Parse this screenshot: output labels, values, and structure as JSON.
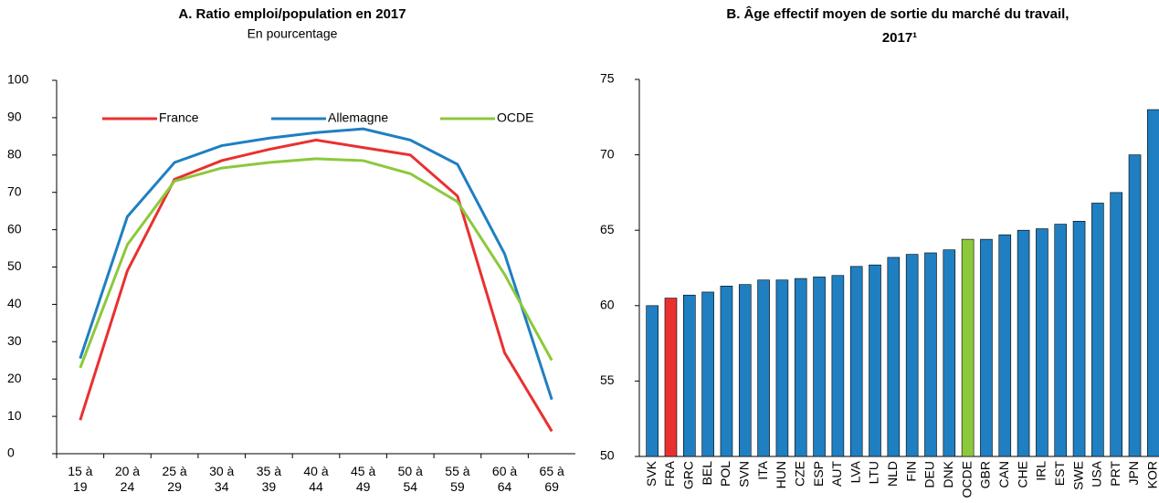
{
  "chart_data": [
    {
      "type": "line",
      "title": "A. Ratio emploi/population en 2017",
      "subtitle": "En pourcentage",
      "categories": [
        "15 à 19",
        "20 à 24",
        "25 à 29",
        "30 à 34",
        "35 à 39",
        "40 à 44",
        "45 à 49",
        "50 à 54",
        "55 à 59",
        "60 à 64",
        "65 à 69"
      ],
      "series": [
        {
          "name": "France",
          "color": "#e8312f",
          "values": [
            9,
            49,
            73.5,
            78.5,
            81.5,
            84,
            82,
            80,
            69,
            27,
            6
          ]
        },
        {
          "name": "Allemagne",
          "color": "#1f7fc1",
          "values": [
            25.5,
            63.5,
            78,
            82.5,
            84.5,
            86,
            87,
            84,
            77.5,
            53.5,
            14.5
          ]
        },
        {
          "name": "OCDE",
          "color": "#8cc83c",
          "values": [
            23,
            56,
            73,
            76.5,
            78,
            79,
            78.5,
            75,
            67.5,
            48,
            25
          ]
        }
      ],
      "ylim": [
        0,
        100
      ],
      "yticks": [
        0,
        10,
        20,
        30,
        40,
        50,
        60,
        70,
        80,
        90,
        100
      ],
      "legend": "top"
    },
    {
      "type": "bar",
      "title": "B. Âge effectif moyen de sortie du marché du travail, 2017¹",
      "categories": [
        "SVK",
        "FRA",
        "GRC",
        "BEL",
        "POL",
        "SVN",
        "ITA",
        "HUN",
        "CZE",
        "ESP",
        "AUT",
        "LVA",
        "LTU",
        "NLD",
        "FIN",
        "DEU",
        "DNK",
        "OCDE",
        "GBR",
        "CAN",
        "CHE",
        "IRL",
        "EST",
        "SWE",
        "USA",
        "PRT",
        "JPN",
        "KOR"
      ],
      "values": [
        60.0,
        60.5,
        60.7,
        60.9,
        61.3,
        61.4,
        61.7,
        61.7,
        61.8,
        61.9,
        62.0,
        62.6,
        62.7,
        63.2,
        63.4,
        63.5,
        63.7,
        64.4,
        64.4,
        64.7,
        65.0,
        65.1,
        65.4,
        65.6,
        66.8,
        67.5,
        70.0,
        73.0
      ],
      "colors": [
        "#1f7fc1",
        "#e8312f",
        "#1f7fc1",
        "#1f7fc1",
        "#1f7fc1",
        "#1f7fc1",
        "#1f7fc1",
        "#1f7fc1",
        "#1f7fc1",
        "#1f7fc1",
        "#1f7fc1",
        "#1f7fc1",
        "#1f7fc1",
        "#1f7fc1",
        "#1f7fc1",
        "#1f7fc1",
        "#1f7fc1",
        "#8cc83c",
        "#1f7fc1",
        "#1f7fc1",
        "#1f7fc1",
        "#1f7fc1",
        "#1f7fc1",
        "#1f7fc1",
        "#1f7fc1",
        "#1f7fc1",
        "#1f7fc1",
        "#1f7fc1"
      ],
      "ylim": [
        50,
        75
      ],
      "yticks": [
        50,
        55,
        60,
        65,
        70,
        75
      ]
    }
  ]
}
